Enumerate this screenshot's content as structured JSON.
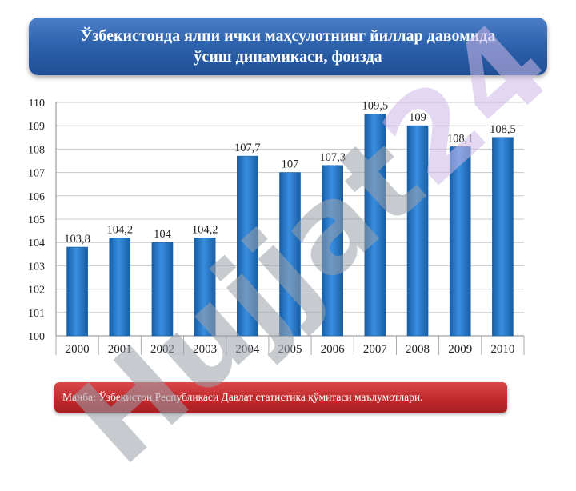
{
  "title": {
    "line1": "Ўзбекистонда ялпи ички маҳсулотнинг йиллар давомида",
    "line2": "ўсиш динамикаси, фоизда"
  },
  "source_note": "Манба: Ўзбекистон Республикаси Давлат статистика қўмитаси маълумотлари.",
  "watermark": {
    "part1": "Hujjat",
    "part2": "24"
  },
  "colors": {
    "bar": "#1f73c3",
    "title_bg": "#2f63ad",
    "source_bg": "#c0282b"
  },
  "chart_data": {
    "type": "bar",
    "title": "Ўзбекистонда ялпи ички маҳсулотнинг йиллар давомида ўсиш динамикаси, фоизда",
    "xlabel": "",
    "ylabel": "",
    "categories": [
      "2000",
      "2001",
      "2002",
      "2003",
      "2004",
      "2005",
      "2006",
      "2007",
      "2008",
      "2009",
      "2010"
    ],
    "values": [
      103.8,
      104.2,
      104,
      104.2,
      107.7,
      107,
      107.3,
      109.5,
      109,
      108.1,
      108.5
    ],
    "data_labels": [
      "103,8",
      "104,2",
      "104",
      "104,2",
      "107,7",
      "107",
      "107,3",
      "109,5",
      "109",
      "108,1",
      "108,5"
    ],
    "ylim": [
      100,
      110
    ],
    "yticks": [
      "100",
      "101",
      "102",
      "103",
      "104",
      "105",
      "106",
      "107",
      "108",
      "109",
      "110"
    ],
    "grid": true,
    "legend": "none"
  }
}
